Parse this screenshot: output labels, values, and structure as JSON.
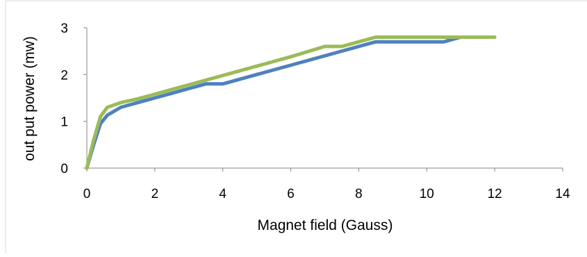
{
  "chart_data": {
    "type": "line",
    "title": "",
    "xlabel": "Magnet field (Gauss)",
    "ylabel": "out put power (mw)",
    "xlim": [
      0,
      14
    ],
    "ylim": [
      0,
      3
    ],
    "x_ticks": [
      "0",
      "2",
      "4",
      "6",
      "8",
      "10",
      "12",
      "14"
    ],
    "y_ticks": [
      "0",
      "1",
      "2",
      "3"
    ],
    "grid": false,
    "legend": "none",
    "series": [
      {
        "color": "#4f81bd",
        "points": [
          [
            0,
            0
          ],
          [
            0.2,
            0.5
          ],
          [
            0.4,
            0.95
          ],
          [
            0.6,
            1.13
          ],
          [
            1,
            1.3
          ],
          [
            1.5,
            1.4
          ],
          [
            2,
            1.5
          ],
          [
            2.5,
            1.6
          ],
          [
            3,
            1.7
          ],
          [
            3.5,
            1.8
          ],
          [
            4,
            1.8
          ],
          [
            5,
            2.0
          ],
          [
            6,
            2.2
          ],
          [
            7,
            2.4
          ],
          [
            8,
            2.6
          ],
          [
            8.5,
            2.7
          ],
          [
            9,
            2.7
          ],
          [
            10,
            2.7
          ],
          [
            10.5,
            2.7
          ],
          [
            11,
            2.8
          ],
          [
            12,
            2.8
          ]
        ]
      },
      {
        "color": "#9bbb59",
        "points": [
          [
            0,
            0
          ],
          [
            0.2,
            0.6
          ],
          [
            0.4,
            1.1
          ],
          [
            0.6,
            1.3
          ],
          [
            1,
            1.4
          ],
          [
            1.5,
            1.48
          ],
          [
            2,
            1.58
          ],
          [
            3,
            1.78
          ],
          [
            4,
            1.98
          ],
          [
            5,
            2.18
          ],
          [
            6,
            2.38
          ],
          [
            7,
            2.6
          ],
          [
            7.5,
            2.6
          ],
          [
            8,
            2.7
          ],
          [
            8.5,
            2.8
          ],
          [
            9,
            2.8
          ],
          [
            10,
            2.8
          ],
          [
            11,
            2.8
          ],
          [
            12,
            2.8
          ]
        ]
      }
    ]
  }
}
